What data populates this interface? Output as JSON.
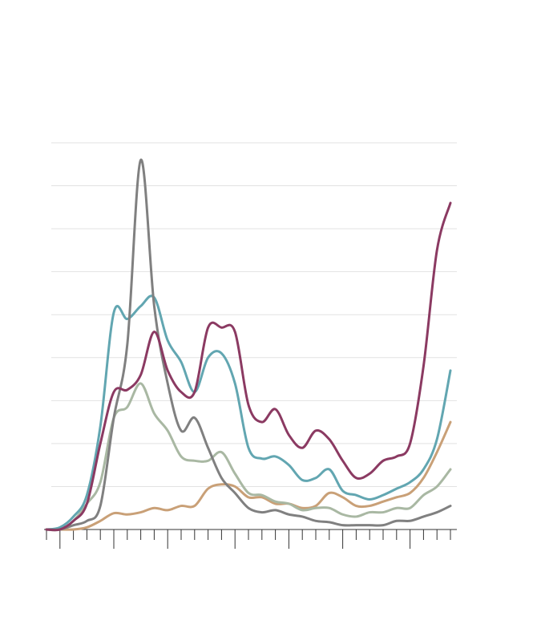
{
  "chart_data": {
    "type": "line",
    "x": [
      0,
      1,
      2,
      3,
      4,
      5,
      6,
      7,
      8,
      9,
      10,
      11,
      12,
      13,
      14,
      15,
      16,
      17,
      18,
      19,
      20,
      21,
      22,
      23,
      24,
      25,
      26,
      27,
      28,
      29,
      30
    ],
    "xlim": [
      0,
      30
    ],
    "xticks": [
      0,
      1,
      2,
      3,
      4,
      5,
      6,
      7,
      8,
      9,
      10,
      11,
      12,
      13,
      14,
      15,
      16,
      17,
      18,
      19,
      20,
      21,
      22,
      23,
      24,
      25,
      26,
      27,
      28,
      29,
      30
    ],
    "major_xticks": [
      1,
      5,
      9,
      14,
      18,
      22,
      27
    ],
    "ylim": [
      0,
      9
    ],
    "yticks": [
      0,
      1,
      2,
      3,
      4,
      5,
      6,
      7,
      8,
      9
    ],
    "grid": true,
    "series": [
      {
        "color": "#c9a077",
        "values": [
          0,
          0,
          0,
          0.05,
          0.2,
          0.38,
          0.35,
          0.4,
          0.5,
          0.45,
          0.55,
          0.55,
          0.95,
          1.05,
          1.0,
          0.75,
          0.75,
          0.6,
          0.6,
          0.5,
          0.55,
          0.85,
          0.75,
          0.55,
          0.55,
          0.65,
          0.75,
          0.85,
          1.2,
          1.8,
          2.5
        ]
      },
      {
        "color": "#a9b8a3",
        "values": [
          0,
          0,
          0.2,
          0.6,
          1.1,
          2.6,
          2.85,
          3.4,
          2.7,
          2.3,
          1.7,
          1.6,
          1.6,
          1.8,
          1.3,
          0.85,
          0.8,
          0.65,
          0.6,
          0.45,
          0.5,
          0.5,
          0.35,
          0.3,
          0.4,
          0.4,
          0.5,
          0.5,
          0.8,
          1.0,
          1.4
        ]
      },
      {
        "color": "#62a6b1",
        "values": [
          0,
          0.05,
          0.3,
          0.8,
          2.4,
          5.05,
          4.9,
          5.2,
          5.4,
          4.4,
          3.9,
          3.2,
          4.0,
          4.1,
          3.4,
          1.9,
          1.65,
          1.7,
          1.5,
          1.15,
          1.2,
          1.4,
          0.9,
          0.8,
          0.7,
          0.8,
          0.95,
          1.1,
          1.4,
          2.1,
          3.7
        ]
      },
      {
        "color": "#808080",
        "values": [
          0,
          0,
          0.1,
          0.2,
          0.55,
          2.6,
          4.3,
          8.6,
          5.2,
          3.4,
          2.3,
          2.6,
          1.9,
          1.2,
          0.85,
          0.5,
          0.4,
          0.45,
          0.35,
          0.3,
          0.2,
          0.17,
          0.1,
          0.1,
          0.1,
          0.1,
          0.2,
          0.2,
          0.3,
          0.4,
          0.55
        ]
      },
      {
        "color": "#8b3a62",
        "values": [
          0,
          0,
          0.2,
          0.6,
          2.0,
          3.2,
          3.25,
          3.6,
          4.6,
          3.7,
          3.2,
          3.2,
          4.7,
          4.7,
          4.6,
          2.9,
          2.5,
          2.8,
          2.2,
          1.9,
          2.3,
          2.1,
          1.6,
          1.2,
          1.3,
          1.6,
          1.7,
          2.0,
          3.8,
          6.5,
          7.6
        ]
      }
    ]
  }
}
